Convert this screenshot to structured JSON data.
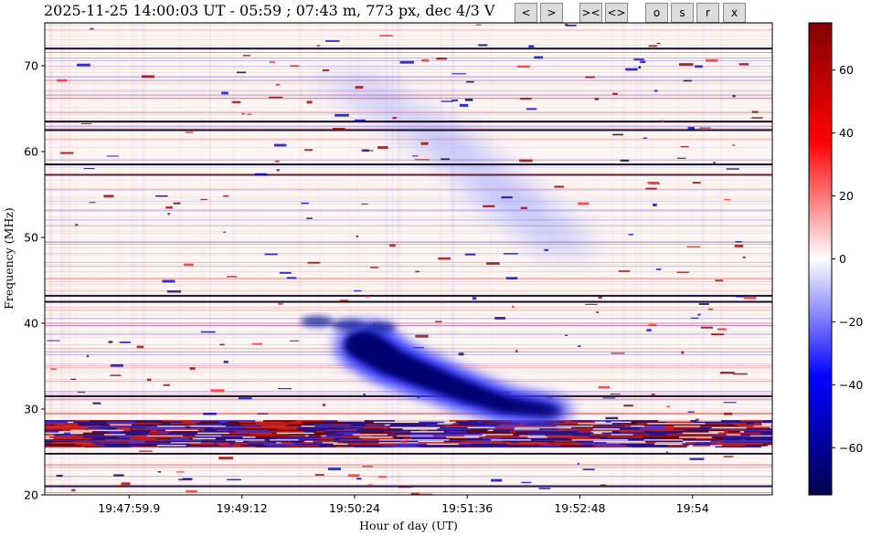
{
  "header": {
    "title": "2025-11-25 14:00:03 UT - 05:59 ; 07:43 m, 773 px, dec 4/3 V",
    "buttons": [
      {
        "id": "prev",
        "label": "<"
      },
      {
        "id": "next",
        "label": ">"
      },
      {
        "id": "zoom-in",
        "label": "><"
      },
      {
        "id": "zoom-out",
        "label": "<>"
      },
      {
        "id": "o",
        "label": "o"
      },
      {
        "id": "s",
        "label": "s"
      },
      {
        "id": "r",
        "label": "r"
      },
      {
        "id": "x",
        "label": "x"
      }
    ]
  },
  "chart_data": {
    "type": "heatmap",
    "title": "",
    "xlabel": "Hour of day (UT)",
    "ylabel": "Frequency (MHz)",
    "x_tick_labels": [
      "19:47:59.9",
      "19:49:12",
      "19:50:24",
      "19:51:36",
      "19:52:48",
      "19:54"
    ],
    "x_tick_seconds": [
      71279.9,
      71352,
      71424,
      71496,
      71568,
      71640
    ],
    "xlim_seconds": [
      71226,
      71691
    ],
    "ylim": [
      20,
      75
    ],
    "y_ticks": [
      20,
      30,
      40,
      50,
      60,
      70
    ],
    "colorbar": {
      "colormap": "seismic",
      "range": [
        -75,
        75
      ],
      "ticks": [
        -60,
        -40,
        -20,
        0,
        20,
        40,
        60
      ]
    },
    "features": {
      "rfi_band_mhz": [
        25.6,
        28.7
      ],
      "strong_lines_mhz": [
        72.0,
        63.5,
        62.5,
        58.5,
        57.3,
        43.2,
        42.5,
        31.5,
        24.8,
        21.0
      ],
      "burst": {
        "type": "type II radio burst (blue, negative)",
        "main_lane": [
          {
            "t": 71430,
            "f": 37.5
          },
          {
            "t": 71447,
            "f": 35.5
          },
          {
            "t": 71470,
            "f": 33.8
          },
          {
            "t": 71495,
            "f": 32.0
          },
          {
            "t": 71520,
            "f": 30.5
          },
          {
            "t": 71550,
            "f": 29.8
          }
        ],
        "upper_lane": [
          {
            "t": 71400,
            "f": 40.2
          },
          {
            "t": 71420,
            "f": 39.8
          },
          {
            "t": 71440,
            "f": 39.5
          }
        ],
        "diffuse_harmonic": [
          {
            "t": 71420,
            "f": 68.0
          },
          {
            "t": 71480,
            "f": 61.5
          },
          {
            "t": 71520,
            "f": 55.0
          },
          {
            "t": 71560,
            "f": 49.0
          }
        ]
      }
    }
  },
  "colors": {
    "positive": "#800000",
    "zero": "#ffffff",
    "negative": "#00004c"
  }
}
